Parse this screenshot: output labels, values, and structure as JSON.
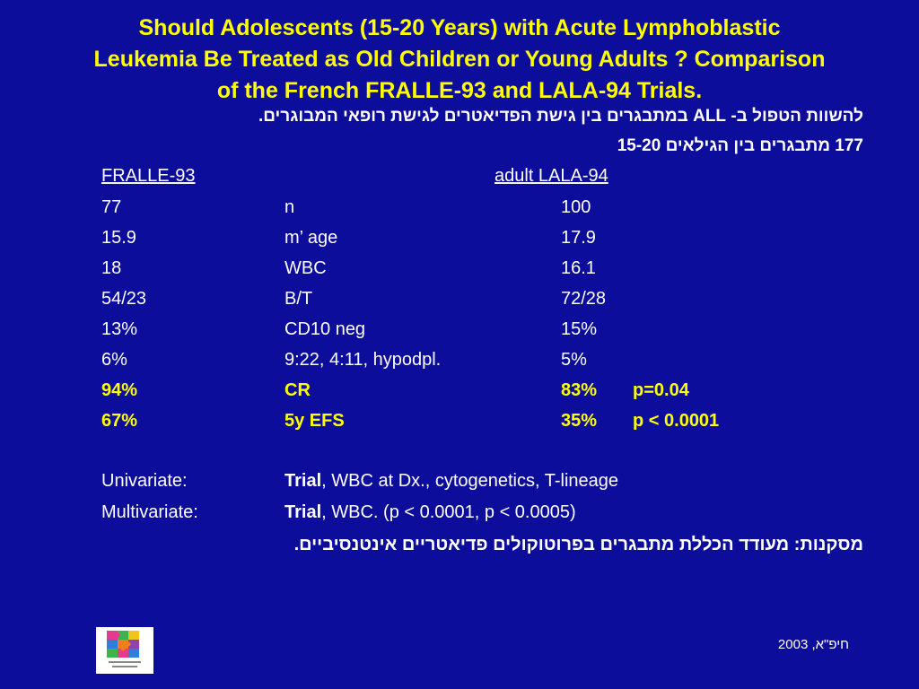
{
  "title": {
    "line1": "Should Adolescents (15-20 Years) with Acute Lymphoblastic",
    "line2": "Leukemia Be Treated as Old Children or Young Adults ? Comparison",
    "line3": "of the French FRALLE-93 and LALA-94 Trials."
  },
  "hebrew": {
    "line1": "להשוות הטפול ב- ALL במתבגרים בין גישת הפדיאטרים לגישת רופאי  המבוגרים.",
    "line2": "177 מתבגרים בין הגילאים 15-20",
    "conclusion": "מסקנות: מעודד הכללת מתבגרים בפרוטוקולים פדיאטריים אינטנסיביים."
  },
  "table": {
    "col_left": "FRALLE-93",
    "col_right": "adult LALA-94",
    "rows": [
      {
        "left": " 77",
        "param": "n",
        "right": "100",
        "p": ""
      },
      {
        "left": "15.9",
        "param": "m’ age",
        "right": "17.9",
        "p": ""
      },
      {
        "left": "18",
        "param": "WBC",
        "right": "16.1",
        "p": ""
      },
      {
        "left": "54/23",
        "param": "B/T",
        "right": "72/28",
        "p": ""
      },
      {
        "left": "13%",
        "param": "CD10 neg",
        "right": "15%",
        "p": ""
      },
      {
        "left": "6%",
        "param": "9:22,  4:11,  hypodpl.",
        "right": "5%",
        "p": ""
      },
      {
        "left": "94%",
        "param": "CR",
        "right": "83%",
        "p": "p=0.04"
      },
      {
        "left": "67%",
        "param": "5y EFS",
        "right": "35%",
        "p": "p < 0.0001"
      }
    ]
  },
  "analysis": {
    "univariate_label": "Univariate:",
    "univariate_trial": "Trial",
    "univariate_rest": ",  WBC at Dx.,  cytogenetics,  T-lineage",
    "multivariate_label": "Multivariate:",
    "multivariate_trial": "Trial",
    "multivariate_rest": ",  WBC.  (p < 0.0001,  p < 0.0005)"
  },
  "footer": {
    "text": "חיפ\"א,  2003"
  },
  "colors": {
    "background": "#0d0d9c",
    "title": "#ffff00",
    "highlight": "#ffff00",
    "text": "#ffffff"
  }
}
